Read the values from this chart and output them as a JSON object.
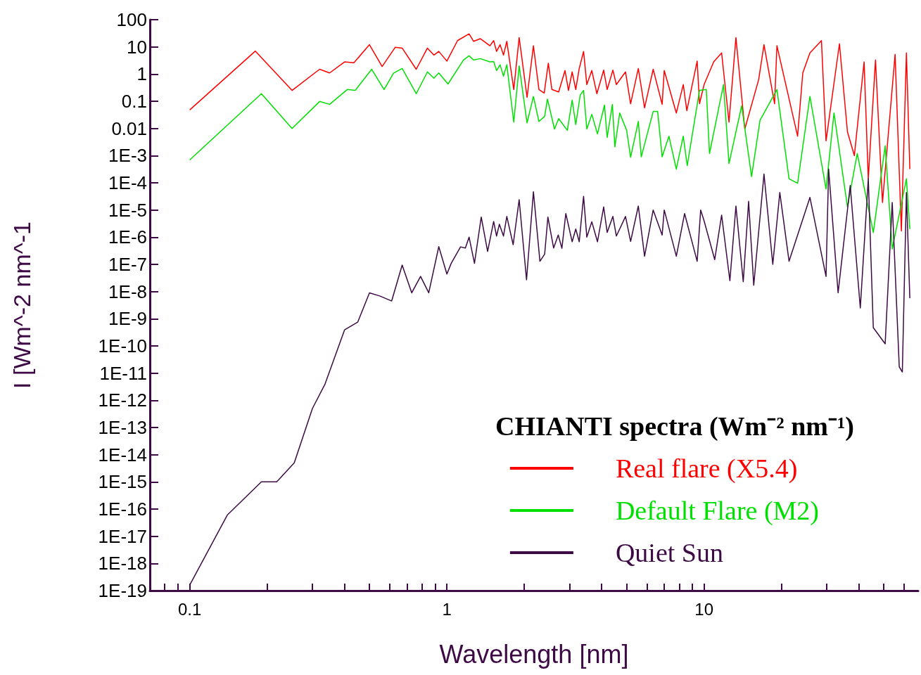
{
  "chart_data": {
    "type": "line",
    "xlabel": "Wavelength [nm]",
    "ylabel": "I [Wm^-2 nm^-1",
    "legend_title": "CHIANTI spectra (Wm⁻² nm⁻¹)",
    "log": "xy",
    "grid": false,
    "legend": "bottom right",
    "marker": "none",
    "line_style": "solid",
    "xlim": [
      0.07,
      68
    ],
    "ylim": [
      1e-19,
      100
    ],
    "xticks": [
      {
        "value": 0.08,
        "label": null
      },
      {
        "value": 0.09,
        "label": null
      },
      0.1,
      {
        "value": 0.2,
        "label": null
      },
      {
        "value": 0.3,
        "label": null
      },
      {
        "value": 0.4,
        "label": null
      },
      {
        "value": 0.5,
        "label": null
      },
      {
        "value": 0.6,
        "label": null
      },
      {
        "value": 0.7,
        "label": null
      },
      {
        "value": 0.8,
        "label": null
      },
      {
        "value": 0.9,
        "label": null
      },
      1,
      {
        "value": 2,
        "label": null
      },
      {
        "value": 3,
        "label": null
      },
      {
        "value": 4,
        "label": null
      },
      {
        "value": 5,
        "label": null
      },
      {
        "value": 6,
        "label": null
      },
      {
        "value": 7,
        "label": null
      },
      {
        "value": 8,
        "label": null
      },
      {
        "value": 9,
        "label": null
      },
      10,
      {
        "value": 20,
        "label": null
      },
      {
        "value": 30,
        "label": null
      },
      {
        "value": 40,
        "label": null
      },
      {
        "value": 50,
        "label": null
      },
      {
        "value": 60,
        "label": null
      }
    ],
    "yticks": [
      {
        "value": 1e-19,
        "label": "1E-19"
      },
      {
        "value": 1e-18,
        "label": "1E-18"
      },
      {
        "value": 1e-17,
        "label": "1E-17"
      },
      {
        "value": 1e-16,
        "label": "1E-16"
      },
      {
        "value": 1e-15,
        "label": "1E-15"
      },
      {
        "value": 1e-14,
        "label": "1E-14"
      },
      {
        "value": 1e-13,
        "label": "1E-13"
      },
      {
        "value": 1e-12,
        "label": "1E-12"
      },
      {
        "value": 1e-11,
        "label": "1E-11"
      },
      {
        "value": 1e-10,
        "label": "1E-10"
      },
      {
        "value": 1e-09,
        "label": "1E-9"
      },
      {
        "value": 1e-08,
        "label": "1E-8"
      },
      {
        "value": 1e-07,
        "label": "1E-7"
      },
      {
        "value": 1e-06,
        "label": "1E-6"
      },
      {
        "value": 1e-05,
        "label": "1E-5"
      },
      {
        "value": 0.0001,
        "label": "1E-4"
      },
      {
        "value": 0.001,
        "label": "1E-3"
      },
      0.01,
      0.1,
      1,
      10,
      100
    ],
    "series": [
      {
        "name": "Real flare (X5.4)",
        "color": "#ff0000",
        "x": [
          0.1,
          0.18,
          0.25,
          0.32,
          0.35,
          0.4,
          0.435,
          0.5,
          0.56,
          0.63,
          0.67,
          0.76,
          0.84,
          0.89,
          0.93,
          1.0,
          1.1,
          1.22,
          1.27,
          1.35,
          1.47,
          1.52,
          1.56,
          1.61,
          1.66,
          1.71,
          1.82,
          1.91,
          2.05,
          2.17,
          2.28,
          2.39,
          2.48,
          2.56,
          2.72,
          2.88,
          2.97,
          3.07,
          3.17,
          3.27,
          3.4,
          3.5,
          3.66,
          3.83,
          4.07,
          4.2,
          4.42,
          4.56,
          4.95,
          5.18,
          5.55,
          5.87,
          6.34,
          6.87,
          7.0,
          7.8,
          8.3,
          8.57,
          9.4,
          9.6,
          10,
          10.9,
          11.7,
          12.5,
          13.3,
          14.4,
          16.3,
          17.1,
          18.8,
          19.2,
          23.1,
          24.2,
          25.8,
          28.6,
          29.8,
          33.6,
          36.1,
          38.4,
          41.9,
          43.5,
          46.4,
          49.4,
          55.3,
          58.5,
          61.2,
          63.1
        ],
        "values": [
          0.048,
          7,
          0.25,
          1.5,
          1.1,
          2.8,
          2.6,
          12,
          1.9,
          9.7,
          9,
          1.5,
          9,
          5,
          6.8,
          3,
          17,
          30,
          16,
          20,
          11,
          17,
          6.8,
          12,
          5,
          16,
          0.27,
          22,
          0.14,
          11,
          0.27,
          0.2,
          2.5,
          0.27,
          0.22,
          1.35,
          0.25,
          1.2,
          0.27,
          1.6,
          6.8,
          0.41,
          1.35,
          0.19,
          1.4,
          0.27,
          1.4,
          0.41,
          1.2,
          0.081,
          1.6,
          0.057,
          1.5,
          0.077,
          1.35,
          0.037,
          0.41,
          0.045,
          3,
          0.081,
          0.41,
          2.8,
          6,
          0.017,
          22,
          0.0095,
          0.62,
          12,
          0.081,
          11,
          0.0052,
          1.1,
          6,
          17,
          0.0035,
          13,
          0.0075,
          0.001,
          2.8,
          0.00014,
          3.3,
          1.9e-05,
          5.3,
          1.7e-06,
          6,
          0.00032
        ]
      },
      {
        "name": "Default Flare (M2)",
        "color": "#00e000",
        "x": [
          0.1,
          0.19,
          0.25,
          0.32,
          0.35,
          0.41,
          0.44,
          0.51,
          0.57,
          0.62,
          0.67,
          0.76,
          0.84,
          0.89,
          0.93,
          1.01,
          1.16,
          1.22,
          1.27,
          1.35,
          1.47,
          1.52,
          1.56,
          1.61,
          1.66,
          1.71,
          1.82,
          1.91,
          2.05,
          2.17,
          2.28,
          2.4,
          2.46,
          2.62,
          2.72,
          2.94,
          3.07,
          3.17,
          3.3,
          3.4,
          3.5,
          3.66,
          3.85,
          4.1,
          4.2,
          4.4,
          4.5,
          4.7,
          5.0,
          5.18,
          5.55,
          5.7,
          6.34,
          6.6,
          6.87,
          7.3,
          7.8,
          8.3,
          8.6,
          9.6,
          10.2,
          10.5,
          11.9,
          12.5,
          14.0,
          15.3,
          16.5,
          19.2,
          21.4,
          23.1,
          25.8,
          29.8,
          32,
          36.1,
          39.4,
          45.5,
          50.6,
          53.9,
          61.2,
          63.1
        ],
        "values": [
          0.00069,
          0.19,
          0.01,
          0.098,
          0.077,
          0.27,
          0.25,
          1.5,
          0.27,
          1.07,
          1.6,
          0.19,
          1.2,
          0.7,
          1.1,
          0.43,
          3.3,
          4.7,
          3.3,
          3.7,
          2.8,
          2.9,
          1.35,
          2.2,
          0.84,
          2.2,
          0.017,
          2,
          0.016,
          0.15,
          0.018,
          0.028,
          0.12,
          0.0095,
          0.023,
          0.0085,
          0.11,
          0.014,
          0.17,
          0.25,
          0.0095,
          0.033,
          0.0063,
          0.072,
          0.0047,
          0.077,
          0.0021,
          0.037,
          0.0085,
          0.00087,
          0.018,
          0.0009,
          0.042,
          0.042,
          0.0009,
          0.0052,
          0.00032,
          0.0052,
          0.00043,
          0.25,
          0.27,
          0.0012,
          0.41,
          0.00051,
          0.068,
          0.00017,
          0.02,
          0.27,
          0.00014,
          9.6e-05,
          0.15,
          5.9e-05,
          0.037,
          1.3e-05,
          0.0012,
          1.5e-06,
          0.0023,
          3.7e-07,
          0.00014,
          2e-06
        ]
      },
      {
        "name": "Quiet Sun",
        "color": "#3d0a45",
        "x": [
          0.1,
          0.14,
          0.19,
          0.218,
          0.255,
          0.3,
          0.336,
          0.4,
          0.45,
          0.5,
          0.55,
          0.61,
          0.67,
          0.73,
          0.79,
          0.85,
          0.93,
          1.0,
          1.04,
          1.13,
          1.18,
          1.22,
          1.28,
          1.36,
          1.44,
          1.52,
          1.56,
          1.6,
          1.66,
          1.71,
          1.81,
          1.91,
          2.04,
          2.17,
          2.3,
          2.4,
          2.47,
          2.6,
          2.71,
          2.8,
          2.9,
          3.07,
          3.17,
          3.27,
          3.4,
          3.5,
          3.66,
          3.85,
          4.07,
          4.2,
          4.42,
          4.56,
          4.95,
          5.18,
          5.55,
          5.87,
          6.34,
          6.87,
          7.0,
          7.8,
          8.4,
          9.4,
          9.7,
          10,
          11,
          11.7,
          12.6,
          13.3,
          14.2,
          14.9,
          15.6,
          17.1,
          18.5,
          19.7,
          21.4,
          25.8,
          29.8,
          30.5,
          33.2,
          37,
          40.5,
          43.5,
          45.5,
          50.6,
          53.9,
          57.4,
          59,
          61.2,
          63.1
        ],
        "values": [
          1.6e-19,
          6e-17,
          1e-15,
          1e-15,
          5e-15,
          5e-13,
          4e-12,
          3.9e-10,
          7.5e-10,
          9e-09,
          6.8e-09,
          4.5e-09,
          9.4e-08,
          9e-09,
          3.6e-08,
          9e-09,
          4.5e-07,
          4.4e-08,
          1.1e-07,
          4.4e-07,
          4e-07,
          1e-06,
          1.1e-07,
          5.5e-06,
          3e-07,
          3.8e-06,
          1.1e-06,
          3e-06,
          1.1e-06,
          5.8e-06,
          5.3e-07,
          2.4e-05,
          2.7e-08,
          4.7e-05,
          1.3e-07,
          2.4e-07,
          5.5e-06,
          4e-07,
          1.2e-06,
          3.9e-07,
          7.4e-06,
          6.8e-07,
          2e-06,
          6.8e-07,
          3.2e-05,
          1e-06,
          3.7e-06,
          6.8e-07,
          1.3e-05,
          1.5e-06,
          5.8e-06,
          1.1e-06,
          5.8e-06,
          7e-07,
          1.4e-05,
          2e-07,
          1e-05,
          1.2e-06,
          1e-05,
          2e-07,
          7.4e-06,
          1.3e-07,
          1e-05,
          4e-06,
          1.5e-07,
          6.5e-06,
          2.5e-08,
          1.4e-05,
          2.3e-08,
          2.1e-05,
          1.7e-08,
          0.00021,
          1e-07,
          4.4e-05,
          1.3e-07,
          2.9e-05,
          3.6e-08,
          0.00032,
          9e-09,
          8e-05,
          2.5e-09,
          0.00014,
          4.7e-10,
          1.2e-10,
          1.9e-05,
          1.7e-11,
          1.1e-11,
          4.4e-05,
          5.7e-09
        ]
      }
    ]
  }
}
